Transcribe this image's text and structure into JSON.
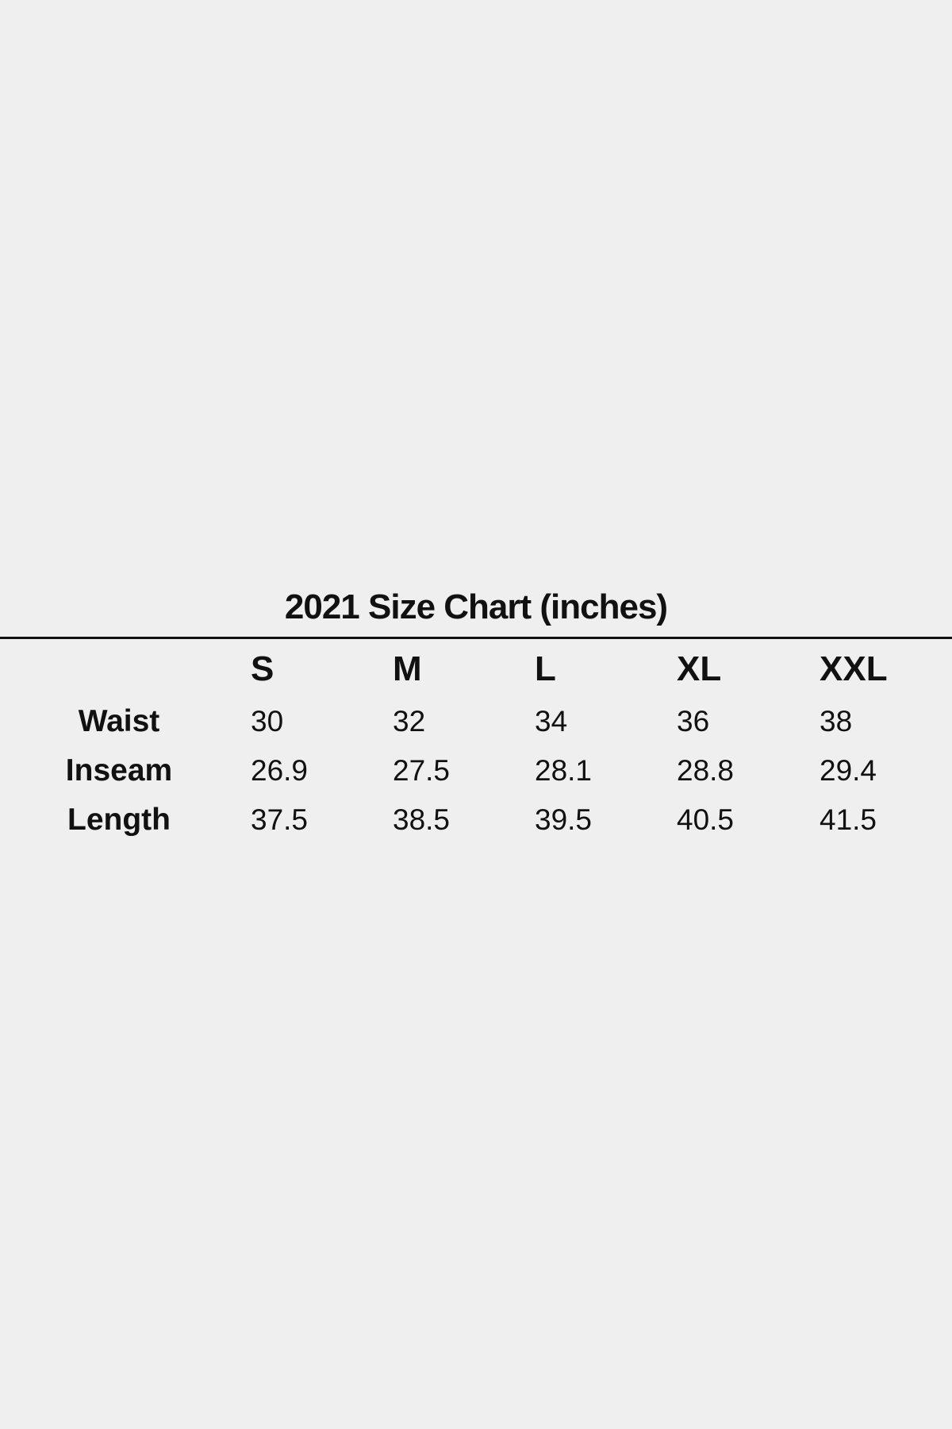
{
  "title": "2021 Size Chart (inches)",
  "columns": [
    "S",
    "M",
    "L",
    "XL",
    "XXL"
  ],
  "rows": [
    {
      "label": "Waist",
      "values": [
        "30",
        "32",
        "34",
        "36",
        "38"
      ]
    },
    {
      "label": "Inseam",
      "values": [
        "26.9",
        "27.5",
        "28.1",
        "28.8",
        "29.4"
      ]
    },
    {
      "label": "Length",
      "values": [
        "37.5",
        "38.5",
        "39.5",
        "40.5",
        "41.5"
      ]
    }
  ]
}
